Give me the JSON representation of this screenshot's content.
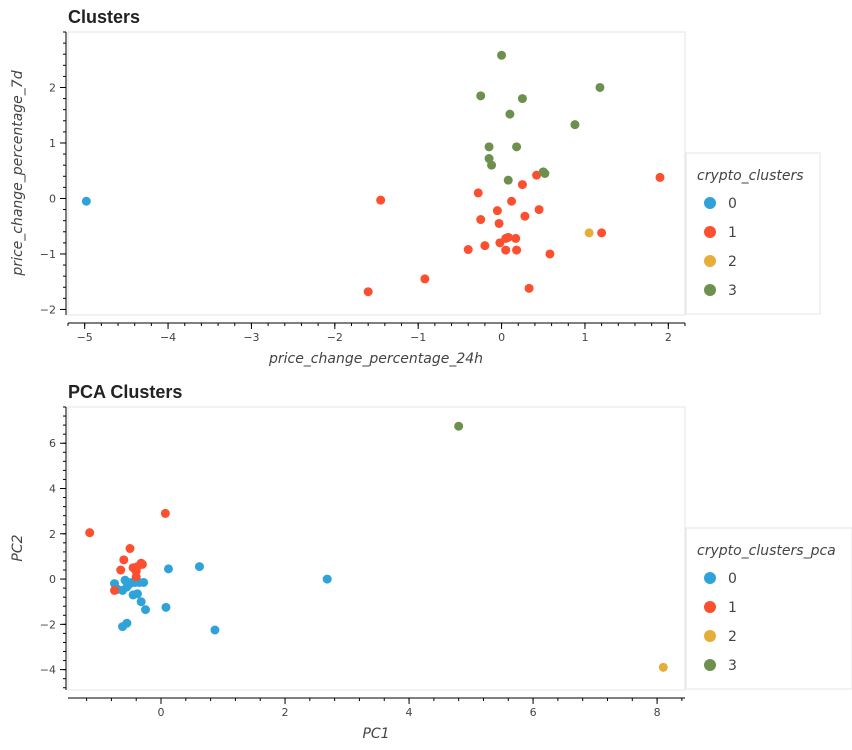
{
  "chart_data": [
    {
      "type": "scatter",
      "title": "Clusters",
      "xlabel": "price_change_percentage_24h",
      "ylabel": "price_change_percentage_7d",
      "xlim": [
        -5.2,
        2.2
      ],
      "ylim": [
        -2.1,
        3.0
      ],
      "xticks": [
        -5,
        -4,
        -3,
        -2,
        -1,
        0,
        1,
        2
      ],
      "yticks": [
        -2,
        -1,
        0,
        1,
        2
      ],
      "grid": false,
      "legend_title": "crypto_clusters",
      "legend_position": "right",
      "series": [
        {
          "name": "0",
          "color": "#30a2da",
          "points": [
            [
              -4.98,
              -0.05
            ]
          ]
        },
        {
          "name": "1",
          "color": "#fc4f30",
          "points": [
            [
              -1.45,
              -0.03
            ],
            [
              -1.6,
              -1.68
            ],
            [
              -0.92,
              -1.45
            ],
            [
              -0.4,
              -0.92
            ],
            [
              -0.25,
              -0.38
            ],
            [
              -0.28,
              0.1
            ],
            [
              -0.2,
              -0.85
            ],
            [
              -0.05,
              -0.22
            ],
            [
              -0.03,
              -0.45
            ],
            [
              -0.02,
              -0.8
            ],
            [
              0.05,
              -0.72
            ],
            [
              0.08,
              -0.7
            ],
            [
              0.05,
              -0.93
            ],
            [
              0.12,
              -0.05
            ],
            [
              0.17,
              -0.72
            ],
            [
              0.18,
              -0.93
            ],
            [
              0.25,
              0.25
            ],
            [
              0.28,
              -0.32
            ],
            [
              0.33,
              -1.62
            ],
            [
              0.42,
              0.42
            ],
            [
              0.45,
              -0.2
            ],
            [
              0.58,
              -1.0
            ],
            [
              1.2,
              -0.62
            ],
            [
              1.9,
              0.38
            ]
          ]
        },
        {
          "name": "2",
          "color": "#e5ae38",
          "points": [
            [
              1.05,
              -0.62
            ]
          ]
        },
        {
          "name": "3",
          "color": "#6d904f",
          "points": [
            [
              0.0,
              2.58
            ],
            [
              -0.25,
              1.85
            ],
            [
              0.25,
              1.8
            ],
            [
              0.1,
              1.52
            ],
            [
              1.18,
              2.0
            ],
            [
              0.88,
              1.33
            ],
            [
              -0.15,
              0.93
            ],
            [
              0.18,
              0.93
            ],
            [
              -0.15,
              0.72
            ],
            [
              -0.12,
              0.6
            ],
            [
              0.08,
              0.33
            ],
            [
              0.5,
              0.48
            ],
            [
              0.52,
              0.45
            ]
          ]
        }
      ]
    },
    {
      "type": "scatter",
      "title": "PCA Clusters",
      "xlabel": "PC1",
      "ylabel": "PC2",
      "xlim": [
        -1.5,
        8.45
      ],
      "ylim": [
        -4.9,
        7.6
      ],
      "xticks": [
        0,
        2,
        4,
        6,
        8
      ],
      "yticks": [
        -4,
        -2,
        0,
        2,
        4,
        6
      ],
      "grid": false,
      "legend_title": "crypto_clusters_pca",
      "legend_position": "right",
      "series": [
        {
          "name": "0",
          "color": "#30a2da",
          "points": [
            [
              -0.75,
              -0.2
            ],
            [
              -0.7,
              -0.45
            ],
            [
              -0.62,
              -0.5
            ],
            [
              -0.58,
              -0.05
            ],
            [
              -0.55,
              -0.35
            ],
            [
              -0.5,
              -0.2
            ],
            [
              -0.48,
              -0.15
            ],
            [
              -0.45,
              -0.7
            ],
            [
              -0.42,
              -0.15
            ],
            [
              -0.38,
              -0.65
            ],
            [
              -0.35,
              -0.15
            ],
            [
              -0.32,
              -1.0
            ],
            [
              -0.28,
              -0.15
            ],
            [
              -0.25,
              -1.35
            ],
            [
              -0.62,
              -2.1
            ],
            [
              -0.55,
              -1.95
            ],
            [
              0.08,
              -1.25
            ],
            [
              0.12,
              0.45
            ],
            [
              0.62,
              0.55
            ],
            [
              0.87,
              -2.25
            ],
            [
              2.68,
              0.0
            ]
          ]
        },
        {
          "name": "1",
          "color": "#fc4f30",
          "points": [
            [
              -1.15,
              2.05
            ],
            [
              -0.75,
              -0.5
            ],
            [
              -0.65,
              0.4
            ],
            [
              -0.6,
              0.85
            ],
            [
              -0.5,
              1.35
            ],
            [
              -0.45,
              0.5
            ],
            [
              -0.4,
              0.35
            ],
            [
              -0.38,
              0.55
            ],
            [
              -0.32,
              0.7
            ],
            [
              -0.3,
              0.65
            ],
            [
              -0.4,
              0.1
            ],
            [
              0.07,
              2.9
            ]
          ]
        },
        {
          "name": "2",
          "color": "#e5ae38",
          "points": [
            [
              8.1,
              -3.9
            ]
          ]
        },
        {
          "name": "3",
          "color": "#6d904f",
          "points": [
            [
              4.8,
              6.75
            ]
          ]
        }
      ]
    }
  ]
}
